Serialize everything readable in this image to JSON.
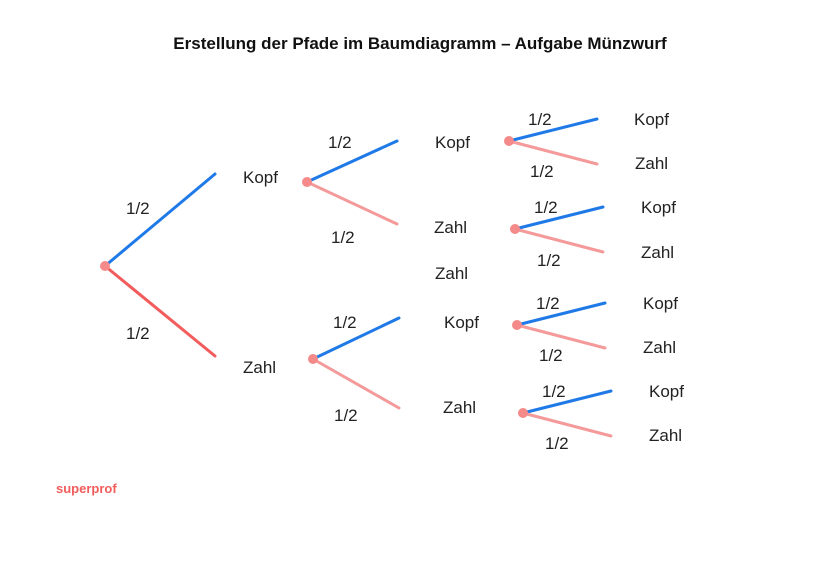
{
  "title": "Erstellung der Pfade im Baumdiagramm – Aufgabe Münzwurf",
  "brand": "superprof",
  "colors": {
    "root_blue": "#1f7ae8",
    "root_red": "#f25c5c",
    "blue": "#1f7ae8",
    "pink": "#f59a9a",
    "node": "#f48a8a",
    "brand": "#f25c5c"
  },
  "tree": {
    "root_probs": [
      "1/2",
      "1/2"
    ],
    "level1": [
      {
        "label": "Kopf",
        "probs": [
          "1/2",
          "1/2"
        ],
        "children": [
          {
            "label": "Kopf",
            "probs": [
              "1/2",
              "1/2"
            ],
            "leaves": [
              "Kopf",
              "Zahl"
            ]
          },
          {
            "label": "Zahl",
            "probs": [
              "1/2",
              "1/2"
            ],
            "leaves": [
              "Kopf",
              "Zahl"
            ]
          }
        ]
      },
      {
        "label": "Zahl",
        "probs": [
          "1/2",
          "1/2"
        ],
        "children": [
          {
            "label": "Kopf",
            "probs": [
              "1/2",
              "1/2"
            ],
            "leaves": [
              "Kopf",
              "Zahl"
            ]
          },
          {
            "label": "Zahl",
            "probs": [
              "1/2",
              "1/2"
            ],
            "leaves": [
              "Kopf",
              "Zahl"
            ]
          }
        ]
      }
    ],
    "stray_label": "Zahl"
  }
}
